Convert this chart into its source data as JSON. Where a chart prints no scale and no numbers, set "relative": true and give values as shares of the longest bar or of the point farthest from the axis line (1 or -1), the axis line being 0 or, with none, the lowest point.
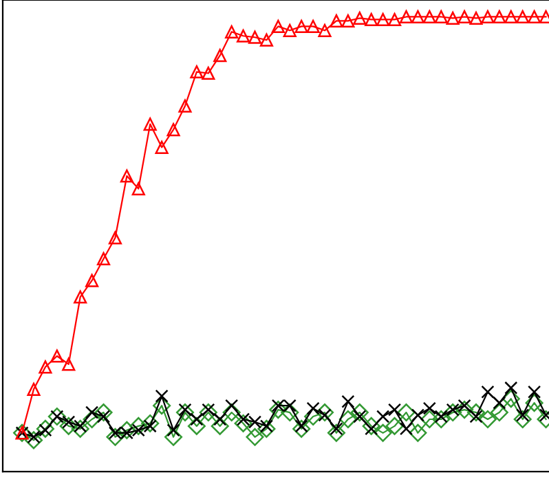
{
  "chart_data": {
    "type": "line",
    "relative": true,
    "categories": [
      null,
      null,
      null,
      null,
      null,
      null,
      null,
      null,
      null,
      null,
      null,
      null,
      null,
      null,
      null,
      null,
      null,
      null,
      null,
      null,
      null,
      null,
      null,
      null,
      null,
      null,
      null,
      null,
      null,
      null,
      null,
      null,
      null,
      null,
      null,
      null,
      null,
      null,
      null,
      null,
      null,
      null,
      null,
      null,
      null,
      null
    ],
    "line_style": "solid",
    "series": [
      {
        "color": "#ff0000",
        "marker": "triangle",
        "values": [
          0.085,
          0.181,
          0.23,
          0.254,
          0.236,
          0.384,
          0.42,
          0.468,
          0.514,
          0.65,
          0.622,
          0.764,
          0.713,
          0.752,
          0.804,
          0.879,
          0.876,
          0.915,
          0.967,
          0.958,
          0.955,
          0.949,
          0.979,
          0.97,
          0.979,
          0.979,
          0.97,
          0.991,
          0.991,
          0.997,
          0.994,
          0.994,
          0.994,
          1,
          1,
          1,
          1,
          0.997,
          1,
          0.997,
          1,
          1,
          1,
          1,
          1,
          1
        ]
      },
      {
        "color": "#000000",
        "marker": "cross",
        "values": [
          0.085,
          0.076,
          0.091,
          0.121,
          0.109,
          0.1,
          0.13,
          0.121,
          0.085,
          0.085,
          0.091,
          0.1,
          0.166,
          0.091,
          0.136,
          0.115,
          0.136,
          0.115,
          0.145,
          0.115,
          0.109,
          0.1,
          0.145,
          0.145,
          0.1,
          0.139,
          0.124,
          0.094,
          0.154,
          0.121,
          0.094,
          0.121,
          0.136,
          0.094,
          0.124,
          0.139,
          0.121,
          0.136,
          0.145,
          0.121,
          0.175,
          0.151,
          0.184,
          0.124,
          0.175,
          0.124
        ]
      },
      {
        "color": "#339933",
        "marker": "diamond",
        "values": [
          0.085,
          0.069,
          0.094,
          0.121,
          0.1,
          0.094,
          0.115,
          0.13,
          0.076,
          0.091,
          0.1,
          0.106,
          0.145,
          0.076,
          0.13,
          0.1,
          0.13,
          0.1,
          0.13,
          0.106,
          0.076,
          0.094,
          0.136,
          0.13,
          0.094,
          0.121,
          0.13,
          0.085,
          0.115,
          0.13,
          0.1,
          0.085,
          0.1,
          0.13,
          0.085,
          0.115,
          0.115,
          0.13,
          0.136,
          0.13,
          0.115,
          0.13,
          0.16,
          0.115,
          0.151,
          0.115
        ]
      }
    ]
  }
}
